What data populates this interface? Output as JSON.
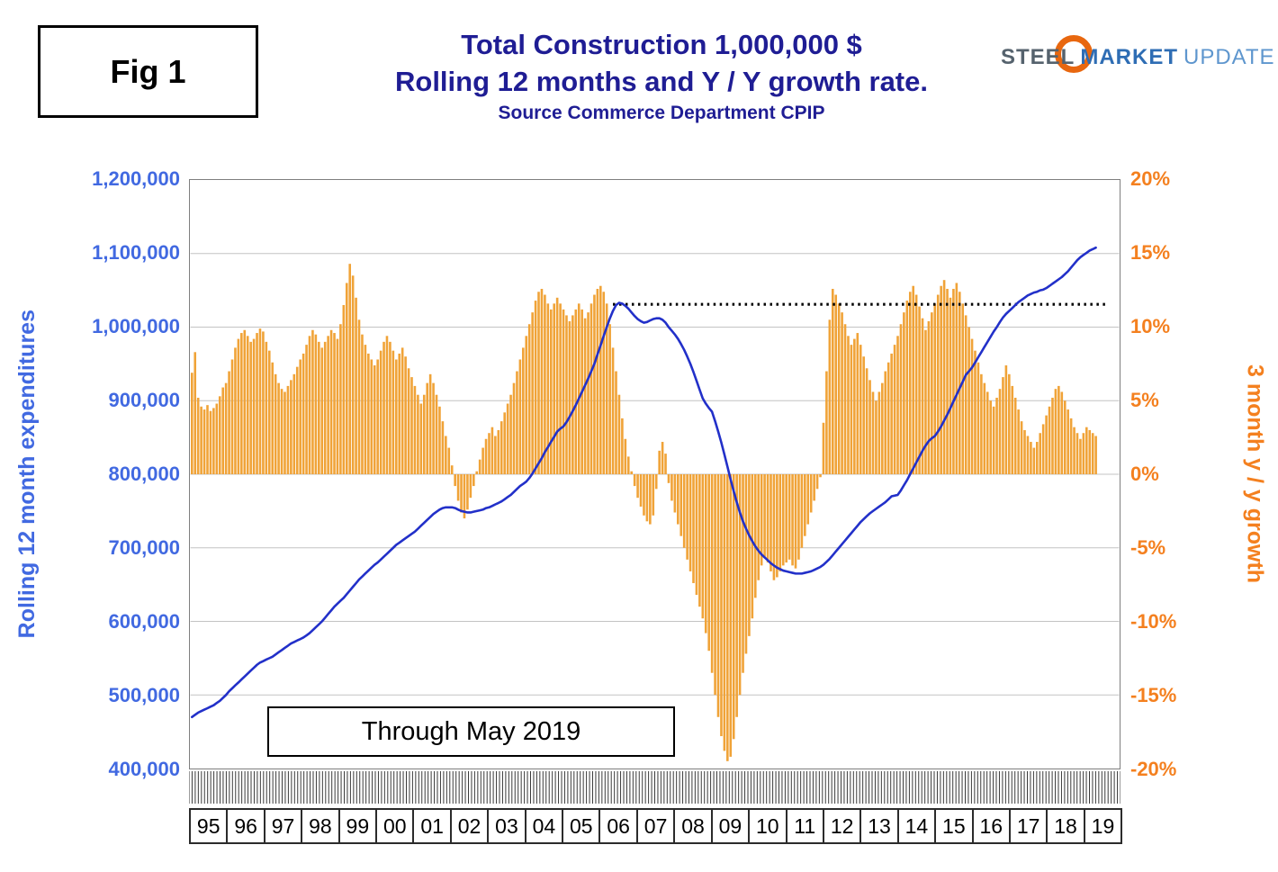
{
  "fig_label": "Fig 1",
  "title": {
    "line1": "Total Construction 1,000,000 $",
    "line2": "Rolling 12 months and Y / Y growth rate.",
    "source": "Source Commerce Department CPIP",
    "color": "#1F1D94"
  },
  "logo": {
    "steel": "STEEL",
    "market": "MARKET",
    "update": "UPDATE",
    "ring_color": "#E8670F"
  },
  "annotation_box": {
    "label": "Through May 2019"
  },
  "left_axis": {
    "title": "Rolling 12 month expenditures",
    "color": "#4169E1",
    "ticks": [
      "1,200,000",
      "1,100,000",
      "1,000,000",
      "900,000",
      "800,000",
      "700,000",
      "600,000",
      "500,000",
      "400,000"
    ]
  },
  "right_axis": {
    "title": "3 month y / y growth",
    "color": "#F4801F",
    "ticks": [
      "20%",
      "15%",
      "10%",
      "5%",
      "0%",
      "-5%",
      "-10%",
      "-15%",
      "-20%"
    ]
  },
  "x_axis": {
    "years": [
      "95",
      "96",
      "97",
      "98",
      "99",
      "00",
      "01",
      "02",
      "03",
      "04",
      "05",
      "06",
      "07",
      "08",
      "09",
      "10",
      "11",
      "12",
      "13",
      "14",
      "15",
      "16",
      "17",
      "18",
      "19"
    ]
  },
  "chart_data": {
    "type": "bar+line",
    "title": "Total Construction 1,000,000 $ — Rolling 12 months and Y / Y growth rate (through May 2019)",
    "x_start": "1995-01",
    "x_end": "2019-05",
    "months_total": 300,
    "left_ylim": [
      400000,
      1200000
    ],
    "left_tick_step": 100000,
    "left_unit_multiplier": 1000,
    "right_ylim": [
      -20,
      20
    ],
    "right_tick_step": 5,
    "grid": "horizontal-only",
    "grid_color": "#C3C3C3",
    "series": [
      {
        "name": "3 month y / y growth",
        "type": "bar",
        "axis": "right",
        "unit": "%",
        "color": "#F0A338",
        "values": [
          6.9,
          8.3,
          5.2,
          4.6,
          4.4,
          4.7,
          4.3,
          4.5,
          4.8,
          5.3,
          5.9,
          6.2,
          7.0,
          7.8,
          8.6,
          9.2,
          9.6,
          9.8,
          9.4,
          9.0,
          9.2,
          9.6,
          9.9,
          9.7,
          9.0,
          8.4,
          7.6,
          6.8,
          6.2,
          5.8,
          5.6,
          6.0,
          6.4,
          6.8,
          7.3,
          7.8,
          8.2,
          8.8,
          9.4,
          9.8,
          9.5,
          9.0,
          8.6,
          9.0,
          9.4,
          9.8,
          9.6,
          9.2,
          10.2,
          11.5,
          13.0,
          14.3,
          13.5,
          12.0,
          10.5,
          9.5,
          8.8,
          8.2,
          7.8,
          7.4,
          7.8,
          8.4,
          9.0,
          9.4,
          9.0,
          8.4,
          7.8,
          8.2,
          8.6,
          8.0,
          7.2,
          6.6,
          6.0,
          5.4,
          4.8,
          5.4,
          6.2,
          6.8,
          6.2,
          5.4,
          4.6,
          3.6,
          2.6,
          1.8,
          0.6,
          -0.8,
          -1.8,
          -2.6,
          -3.0,
          -2.4,
          -1.6,
          -0.8,
          0.2,
          1.0,
          1.8,
          2.4,
          2.8,
          3.2,
          2.6,
          3.0,
          3.6,
          4.2,
          4.8,
          5.4,
          6.2,
          7.0,
          7.8,
          8.6,
          9.4,
          10.2,
          11.0,
          11.8,
          12.4,
          12.6,
          12.2,
          11.6,
          11.2,
          11.6,
          12.0,
          11.6,
          11.2,
          10.8,
          10.4,
          10.8,
          11.2,
          11.6,
          11.2,
          10.6,
          11.0,
          11.6,
          12.2,
          12.6,
          12.8,
          12.4,
          11.6,
          10.2,
          8.6,
          7.0,
          5.4,
          3.8,
          2.4,
          1.2,
          0.2,
          -0.8,
          -1.6,
          -2.2,
          -2.8,
          -3.2,
          -3.4,
          -2.8,
          -1.0,
          1.6,
          2.2,
          1.4,
          -0.6,
          -1.8,
          -2.6,
          -3.4,
          -4.2,
          -5.0,
          -5.8,
          -6.6,
          -7.4,
          -8.2,
          -9.0,
          -9.8,
          -10.8,
          -12.0,
          -13.5,
          -15.0,
          -16.5,
          -17.8,
          -18.8,
          -19.5,
          -19.2,
          -18.0,
          -16.5,
          -15.0,
          -13.5,
          -12.2,
          -11.0,
          -9.8,
          -8.4,
          -7.2,
          -6.2,
          -5.6,
          -6.0,
          -6.6,
          -7.2,
          -7.0,
          -6.6,
          -6.2,
          -6.0,
          -5.8,
          -6.2,
          -6.4,
          -5.8,
          -5.0,
          -4.2,
          -3.4,
          -2.6,
          -1.8,
          -1.0,
          -0.2,
          3.5,
          7.0,
          10.5,
          12.6,
          12.2,
          11.6,
          11.0,
          10.2,
          9.4,
          8.8,
          9.2,
          9.6,
          8.8,
          8.0,
          7.2,
          6.4,
          5.6,
          5.0,
          5.6,
          6.2,
          7.0,
          7.6,
          8.2,
          8.8,
          9.4,
          10.2,
          11.0,
          11.8,
          12.4,
          12.8,
          12.2,
          11.4,
          10.6,
          9.8,
          10.4,
          11.0,
          11.6,
          12.2,
          12.8,
          13.2,
          12.6,
          12.0,
          12.6,
          13.0,
          12.4,
          11.6,
          10.8,
          10.0,
          9.2,
          8.4,
          7.6,
          6.8,
          6.2,
          5.6,
          5.0,
          4.6,
          5.2,
          5.8,
          6.6,
          7.4,
          6.8,
          6.0,
          5.2,
          4.4,
          3.6,
          3.0,
          2.6,
          2.2,
          1.8,
          2.2,
          2.8,
          3.4,
          4.0,
          4.6,
          5.2,
          5.8,
          6.0,
          5.6,
          5.0,
          4.4,
          3.8,
          3.2,
          2.8,
          2.4,
          2.8,
          3.2,
          3.0,
          2.8,
          2.6
        ]
      },
      {
        "name": "Rolling 12 month expenditures",
        "type": "line",
        "axis": "left",
        "unit": "thousand $1,000,000 (multiply by left_unit_multiplier for axis units)",
        "color": "#2230C9",
        "values": [
          470,
          473,
          476,
          478,
          480,
          482,
          484,
          486,
          489,
          492,
          496,
          500,
          505,
          509,
          513,
          517,
          521,
          525,
          529,
          533,
          537,
          541,
          544,
          546,
          548,
          550,
          552,
          555,
          558,
          561,
          564,
          567,
          570,
          572,
          574,
          576,
          578,
          581,
          584,
          588,
          592,
          596,
          600,
          605,
          610,
          615,
          620,
          624,
          628,
          632,
          637,
          642,
          647,
          652,
          657,
          661,
          665,
          669,
          673,
          677,
          680,
          684,
          688,
          692,
          696,
          700,
          704,
          707,
          710,
          713,
          716,
          719,
          722,
          726,
          730,
          734,
          738,
          742,
          746,
          749,
          752,
          754,
          755,
          755,
          755,
          754,
          752,
          750,
          749,
          748,
          748,
          749,
          750,
          751,
          752,
          754,
          755,
          757,
          759,
          761,
          763,
          766,
          769,
          772,
          776,
          780,
          784,
          787,
          790,
          795,
          801,
          808,
          815,
          822,
          830,
          837,
          844,
          851,
          858,
          862,
          865,
          871,
          878,
          886,
          894,
          903,
          912,
          921,
          930,
          940,
          950,
          963,
          975,
          988,
          1000,
          1012,
          1022,
          1030,
          1033,
          1032,
          1029,
          1025,
          1020,
          1015,
          1011,
          1008,
          1006,
          1007,
          1009,
          1011,
          1012,
          1012,
          1010,
          1006,
          1000,
          995,
          990,
          984,
          977,
          969,
          960,
          950,
          939,
          927,
          915,
          903,
          896,
          890,
          885,
          872,
          858,
          843,
          827,
          810,
          793,
          777,
          762,
          748,
          736,
          726,
          717,
          709,
          702,
          696,
          691,
          687,
          683,
          679,
          676,
          673,
          671,
          669,
          668,
          667,
          666,
          665,
          665,
          665,
          666,
          667,
          668,
          670,
          672,
          674,
          677,
          681,
          685,
          690,
          695,
          700,
          705,
          710,
          715,
          720,
          725,
          730,
          735,
          739,
          743,
          747,
          750,
          753,
          756,
          759,
          762,
          766,
          770,
          771,
          772,
          778,
          785,
          792,
          800,
          808,
          816,
          824,
          832,
          839,
          845,
          849,
          852,
          858,
          865,
          873,
          881,
          890,
          899,
          908,
          917,
          926,
          935,
          940,
          945,
          952,
          959,
          966,
          973,
          980,
          987,
          994,
          1000,
          1007,
          1013,
          1018,
          1022,
          1026,
          1030,
          1034,
          1037,
          1040,
          1043,
          1045,
          1047,
          1048,
          1050,
          1051,
          1053,
          1056,
          1059,
          1062,
          1065,
          1068,
          1072,
          1076,
          1081,
          1086,
          1091,
          1095,
          1098,
          1101,
          1104,
          1106,
          1108
        ]
      }
    ],
    "reference_line": {
      "style": "dotted",
      "color": "#000000",
      "level": 1031,
      "from_month_index": 136,
      "to_month_index": 296
    }
  }
}
